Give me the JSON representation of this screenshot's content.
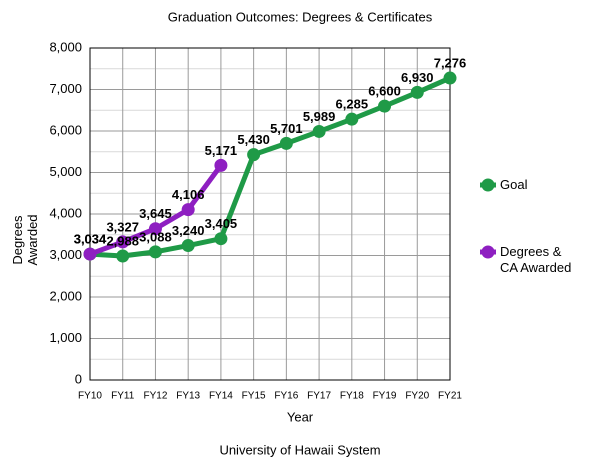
{
  "chart_data": {
    "type": "line",
    "title": "Graduation Outcomes: Degrees & Certificates",
    "x_label": "Year",
    "y_label": "Degrees Awarded",
    "footer": "University of Hawaii System",
    "categories": [
      "FY10",
      "FY11",
      "FY12",
      "FY13",
      "FY14",
      "FY15",
      "FY16",
      "FY17",
      "FY18",
      "FY19",
      "FY20",
      "FY21"
    ],
    "series": [
      {
        "name": "Goal",
        "color": "#1f9a47",
        "values": [
          3034,
          2988,
          3088,
          3240,
          3405,
          5430,
          5701,
          5989,
          6285,
          6600,
          6930,
          7276
        ],
        "value_labels": [
          "3,034",
          "2,988",
          "3,088",
          "3,240",
          "3,405",
          "5,430",
          "5,701",
          "5,989",
          "6,285",
          "6,600",
          "6,930",
          "7,276"
        ]
      },
      {
        "name": "Degrees & CA Awarded",
        "color": "#8e1fc1",
        "values": [
          3034,
          3327,
          3645,
          4106,
          5171,
          null,
          null,
          null,
          null,
          null,
          null,
          null
        ],
        "value_labels": [
          "3,034",
          "3,327",
          "3,645",
          "4,106",
          "5,171",
          null,
          null,
          null,
          null,
          null,
          null,
          null
        ]
      }
    ],
    "ylim": [
      0,
      8000
    ],
    "yticks": [
      0,
      {
        "value": 1000,
        "label": "1,000"
      },
      {
        "value": 2000,
        "label": "2,000"
      },
      {
        "value": 3000,
        "label": "3,000"
      },
      {
        "value": 4000,
        "label": "4,000"
      },
      {
        "value": 5000,
        "label": "5,000"
      },
      {
        "value": 6000,
        "label": "6,000"
      },
      {
        "value": 7000,
        "label": "7,000"
      },
      {
        "value": 8000,
        "label": "8,000"
      }
    ],
    "grid": true,
    "minor_grid": true,
    "legend": "right"
  }
}
